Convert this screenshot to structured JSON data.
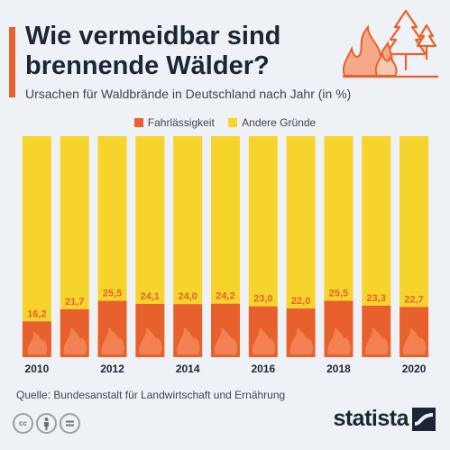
{
  "header": {
    "title": "Wie vermeidbar sind brennende Wälder?",
    "subtitle": "Ursachen für Waldbrände in Deutschland nach Jahr (in %)"
  },
  "footer": {
    "source": "Quelle: Bundesanstalt für Landwirtschaft und Ernährung",
    "brand": "statista",
    "license_icons": [
      "cc-icon",
      "attribution-icon",
      "no-derivatives-icon"
    ]
  },
  "colors": {
    "negligence": "#e8612c",
    "other": "#f6d42b",
    "label": "#e8612c",
    "text": "#1c2536",
    "background": "#eef1f5"
  },
  "chart_data": {
    "type": "bar",
    "stacked": true,
    "title": "Wie vermeidbar sind brennende Wälder?",
    "subtitle": "Ursachen für Waldbrände in Deutschland nach Jahr (in %)",
    "categories": [
      "2010",
      "2011",
      "2012",
      "2013",
      "2014",
      "2015",
      "2016",
      "2017",
      "2018",
      "2019",
      "2020"
    ],
    "x_tick_labels": [
      "2010",
      "",
      "2012",
      "",
      "2014",
      "",
      "2016",
      "",
      "2018",
      "",
      "2020"
    ],
    "series": [
      {
        "name": "Fahrlässigkeit",
        "values": [
          16.2,
          21.7,
          25.5,
          24.1,
          24.0,
          24.2,
          23.0,
          22.0,
          25.5,
          23.3,
          22.7
        ]
      },
      {
        "name": "Andere Gründe",
        "values": [
          83.8,
          78.3,
          74.5,
          75.9,
          76.0,
          75.8,
          77.0,
          78.0,
          74.5,
          76.7,
          77.3
        ]
      }
    ],
    "data_labels": [
      "16,2",
      "21,7",
      "25,5",
      "24,1",
      "24,0",
      "24,2",
      "23,0",
      "22,0",
      "25,5",
      "23,3",
      "22,7"
    ],
    "ylim": [
      0,
      100
    ],
    "unit": "%",
    "grid": false,
    "legend": "top-center"
  }
}
